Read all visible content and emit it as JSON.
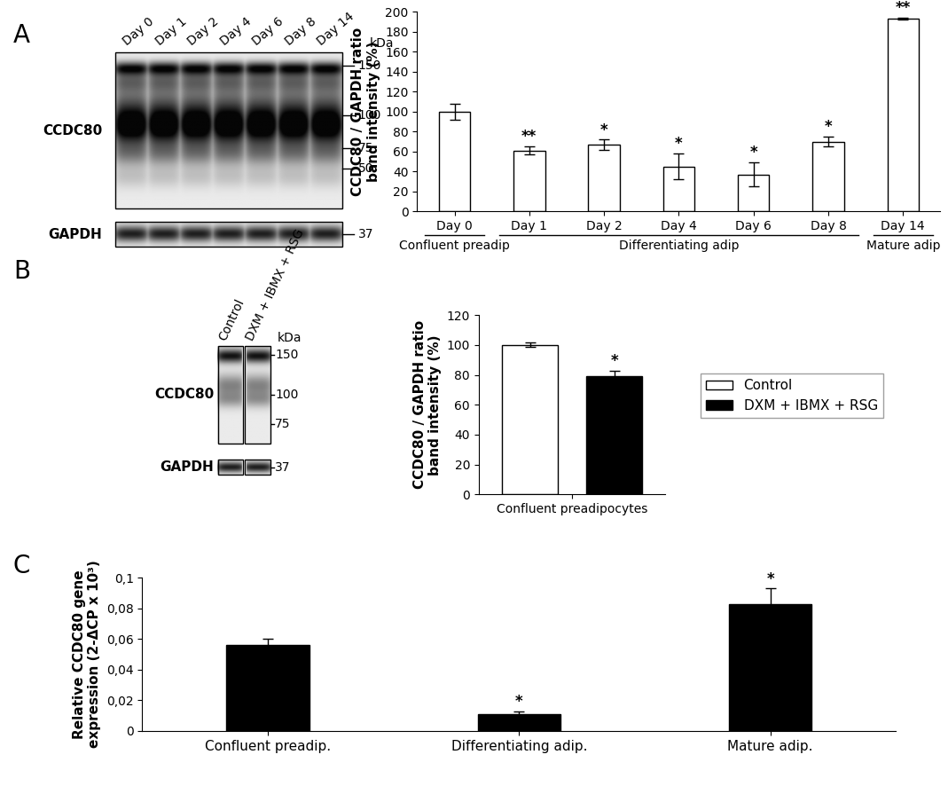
{
  "panels": [
    "A",
    "B",
    "C"
  ],
  "chart_data": [
    {
      "type": "bar",
      "categories": [
        "Day 0",
        "Day 1",
        "Day 2",
        "Day 4",
        "Day 6",
        "Day 8",
        "Day 14"
      ],
      "values": [
        100,
        61,
        67,
        45,
        37,
        70,
        193
      ],
      "errors": [
        8,
        4,
        5,
        13,
        12,
        5,
        1
      ],
      "significance": [
        null,
        "**",
        "*",
        "*",
        "*",
        "*",
        "**"
      ],
      "color": "#ffffff",
      "y_label": "CCDC80 / GAPDH ratio\nband intensity (%)",
      "ylim": [
        0,
        200
      ],
      "yticks": [
        0,
        20,
        40,
        60,
        80,
        100,
        120,
        140,
        160,
        180,
        200
      ],
      "groups": [
        {
          "label": "Confluent preadip",
          "categories": [
            "Day 0"
          ]
        },
        {
          "label": "Differentiating adip",
          "categories": [
            "Day 1",
            "Day 2",
            "Day 4",
            "Day 6",
            "Day 8"
          ]
        },
        {
          "label": "Mature adip",
          "categories": [
            "Day 14"
          ]
        }
      ]
    },
    {
      "type": "bar",
      "categories": [
        "Confluent preadipocytes"
      ],
      "series": [
        {
          "name": "Control",
          "color": "#ffffff",
          "values": [
            100
          ],
          "errors": [
            1.5
          ],
          "significance": [
            null
          ]
        },
        {
          "name": "DXM + IBMX + RSG",
          "color": "#000000",
          "values": [
            79
          ],
          "errors": [
            4
          ],
          "significance": [
            "*"
          ]
        }
      ],
      "y_label": "CCDC80 / GAPDH ratio\nband intensity (%)",
      "ylim": [
        0,
        120
      ],
      "yticks": [
        0,
        20,
        40,
        60,
        80,
        100,
        120
      ],
      "legend": "center left"
    },
    {
      "type": "bar",
      "categories": [
        "Confluent preadip.",
        "Differentiating adip.",
        "Mature adip."
      ],
      "values": [
        0.056,
        0.011,
        0.083
      ],
      "errors": [
        0.004,
        0.002,
        0.01
      ],
      "significance": [
        null,
        "*",
        "*"
      ],
      "color": "#000000",
      "y_label": "Relative CCDC80 gene\nexpression (2-ΔCP x 10³)",
      "ylim": [
        0,
        0.1
      ],
      "yticks": [
        0,
        {
          "value": 0.02,
          "label": "0,02"
        },
        {
          "value": 0.04,
          "label": "0,04"
        },
        {
          "value": 0.06,
          "label": "0,06"
        },
        {
          "value": 0.08,
          "label": "0,08"
        },
        {
          "value": 0.1,
          "label": "0,1"
        }
      ]
    }
  ],
  "blots": [
    {
      "lanes": [
        "Day 0",
        "Day 1",
        "Day 2",
        "Day 4",
        "Day 6",
        "Day 8",
        "Day 14"
      ],
      "unit": "kDa",
      "rows": [
        {
          "label": "CCDC80",
          "markers": [
            150,
            100,
            75,
            50
          ]
        },
        {
          "label": "GAPDH",
          "markers": [
            37
          ]
        }
      ]
    },
    {
      "lanes": [
        "Control",
        "DXM + IBMX + RSG"
      ],
      "unit": "kDa",
      "rows": [
        {
          "label": "CCDC80",
          "markers": [
            150,
            100,
            75
          ]
        },
        {
          "label": "GAPDH",
          "markers": [
            37
          ]
        }
      ]
    }
  ]
}
